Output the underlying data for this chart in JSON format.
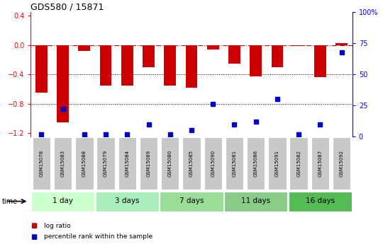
{
  "title": "GDS580 / 15871",
  "samples": [
    "GSM15078",
    "GSM15083",
    "GSM15088",
    "GSM15079",
    "GSM15084",
    "GSM15089",
    "GSM15080",
    "GSM15085",
    "GSM15090",
    "GSM15081",
    "GSM15086",
    "GSM15091",
    "GSM15082",
    "GSM15087",
    "GSM15092"
  ],
  "log_ratio": [
    -0.65,
    -1.05,
    -0.08,
    -0.55,
    -0.55,
    -0.3,
    -0.55,
    -0.58,
    -0.06,
    -0.25,
    -0.43,
    -0.3,
    -0.01,
    -0.44,
    0.03
  ],
  "percentile_rank": [
    2,
    22,
    2,
    2,
    2,
    10,
    2,
    5,
    26,
    10,
    12,
    30,
    2,
    10,
    68
  ],
  "groups": [
    {
      "label": "1 day",
      "start": 0,
      "end": 3
    },
    {
      "label": "3 days",
      "start": 3,
      "end": 6
    },
    {
      "label": "7 days",
      "start": 6,
      "end": 9
    },
    {
      "label": "11 days",
      "start": 9,
      "end": 12
    },
    {
      "label": "16 days",
      "start": 12,
      "end": 15
    }
  ],
  "group_colors": [
    "#ccffcc",
    "#aaeebb",
    "#99dd99",
    "#88cc88",
    "#55bb55"
  ],
  "ylim_left": [
    -1.25,
    0.45
  ],
  "ylim_right": [
    0,
    100
  ],
  "bar_color": "#cc0000",
  "dot_color": "#0000cc",
  "bar_width": 0.55,
  "legend_items": [
    {
      "label": "log ratio",
      "color": "#cc0000"
    },
    {
      "label": "percentile rank within the sample",
      "color": "#0000cc"
    }
  ]
}
